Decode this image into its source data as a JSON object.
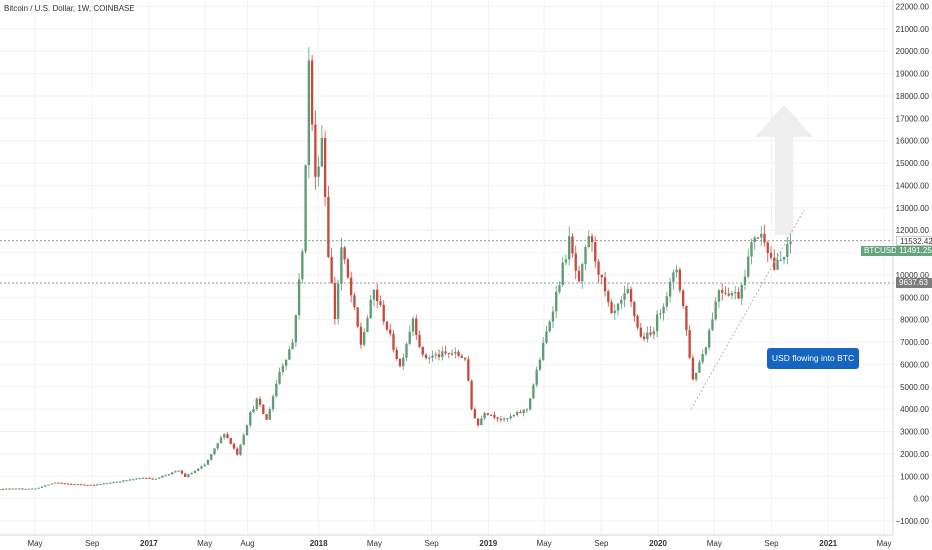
{
  "title": "Bitcoin / U.S. Dollar, 1W, COINBASE",
  "annotation": "USD flowing into BTC",
  "symbol_tag": "BTCUSD",
  "price_tags": {
    "high": "11532.42",
    "last": "11491.25",
    "low": "9637.63"
  },
  "colors": {
    "up": "#5e9b76",
    "down": "#c94a3d",
    "grid": "#f2f2f2",
    "arrow": "#eeeeee",
    "callout": "#1565c0",
    "trendline": "#b5b5b5"
  },
  "chart_data": {
    "type": "candlestick",
    "title": "Bitcoin / U.S. Dollar, 1W, COINBASE",
    "xlabel": "",
    "ylabel": "",
    "ylim": [
      -1000,
      22000
    ],
    "y_ticks": [
      "22000.00",
      "21000.00",
      "20000.00",
      "19000.00",
      "18000.00",
      "17000.00",
      "16000.00",
      "15000.00",
      "14000.00",
      "13000.00",
      "12000.00",
      "11000.00",
      "10000.00",
      "9000.00",
      "8000.00",
      "7000.00",
      "6000.00",
      "5000.00",
      "4000.00",
      "3000.00",
      "2000.00",
      "1000.00",
      "0.00",
      "−1000.00"
    ],
    "x_ticks": [
      {
        "label": "May",
        "date": "2016-05-01",
        "bold": false
      },
      {
        "label": "Sep",
        "date": "2016-09-01",
        "bold": false
      },
      {
        "label": "2017",
        "date": "2017-01-01",
        "bold": true
      },
      {
        "label": "May",
        "date": "2017-05-01",
        "bold": false
      },
      {
        "label": "Aug",
        "date": "2017-08-01",
        "bold": false
      },
      {
        "label": "2018",
        "date": "2018-01-01",
        "bold": true
      },
      {
        "label": "May",
        "date": "2018-05-01",
        "bold": false
      },
      {
        "label": "Sep",
        "date": "2018-09-01",
        "bold": false
      },
      {
        "label": "2019",
        "date": "2019-01-01",
        "bold": true
      },
      {
        "label": "May",
        "date": "2019-05-01",
        "bold": false
      },
      {
        "label": "Sep",
        "date": "2019-09-01",
        "bold": false
      },
      {
        "label": "2020",
        "date": "2020-01-01",
        "bold": true
      },
      {
        "label": "May",
        "date": "2020-05-01",
        "bold": false
      },
      {
        "label": "Sep",
        "date": "2020-09-01",
        "bold": false
      },
      {
        "label": "2021",
        "date": "2021-01-01",
        "bold": true
      },
      {
        "label": "May",
        "date": "2021-05-01",
        "bold": false
      }
    ],
    "price_lines": [
      11532.42,
      9637.63
    ],
    "trendline": [
      {
        "date": "2020-03-12",
        "value": 4000
      },
      {
        "date": "2020-11-10",
        "value": 12900
      }
    ],
    "arrow": {
      "date": "2020-09-28",
      "base": 11800,
      "top": 17600
    },
    "series_keypoints": [
      {
        "date": "2016-01-04",
        "value": 430
      },
      {
        "date": "2016-05-02",
        "value": 450
      },
      {
        "date": "2016-06-13",
        "value": 720
      },
      {
        "date": "2016-07-04",
        "value": 660
      },
      {
        "date": "2016-09-05",
        "value": 610
      },
      {
        "date": "2016-12-26",
        "value": 950
      },
      {
        "date": "2017-01-09",
        "value": 860
      },
      {
        "date": "2017-03-06",
        "value": 1250
      },
      {
        "date": "2017-03-20",
        "value": 980
      },
      {
        "date": "2017-05-01",
        "value": 1500
      },
      {
        "date": "2017-05-22",
        "value": 2200
      },
      {
        "date": "2017-06-12",
        "value": 2950
      },
      {
        "date": "2017-07-10",
        "value": 2000
      },
      {
        "date": "2017-08-07",
        "value": 3800
      },
      {
        "date": "2017-08-21",
        "value": 4400
      },
      {
        "date": "2017-09-11",
        "value": 3500
      },
      {
        "date": "2017-10-09",
        "value": 5700
      },
      {
        "date": "2017-11-06",
        "value": 7000
      },
      {
        "date": "2017-11-27",
        "value": 11000
      },
      {
        "date": "2017-12-11",
        "value": 19400
      },
      {
        "date": "2017-12-25",
        "value": 14200
      },
      {
        "date": "2018-01-08",
        "value": 16200
      },
      {
        "date": "2018-01-22",
        "value": 11000
      },
      {
        "date": "2018-02-05",
        "value": 8100
      },
      {
        "date": "2018-02-19",
        "value": 11200
      },
      {
        "date": "2018-03-05",
        "value": 9800
      },
      {
        "date": "2018-04-02",
        "value": 6900
      },
      {
        "date": "2018-04-30",
        "value": 9300
      },
      {
        "date": "2018-05-14",
        "value": 8500
      },
      {
        "date": "2018-06-25",
        "value": 5900
      },
      {
        "date": "2018-07-23",
        "value": 8100
      },
      {
        "date": "2018-08-13",
        "value": 6300
      },
      {
        "date": "2018-10-15",
        "value": 6500
      },
      {
        "date": "2018-11-12",
        "value": 6300
      },
      {
        "date": "2018-11-26",
        "value": 4000
      },
      {
        "date": "2018-12-10",
        "value": 3300
      },
      {
        "date": "2018-12-24",
        "value": 3900
      },
      {
        "date": "2019-02-04",
        "value": 3500
      },
      {
        "date": "2019-03-25",
        "value": 4000
      },
      {
        "date": "2019-04-08",
        "value": 5100
      },
      {
        "date": "2019-05-13",
        "value": 8000
      },
      {
        "date": "2019-06-24",
        "value": 11500
      },
      {
        "date": "2019-07-15",
        "value": 9500
      },
      {
        "date": "2019-08-05",
        "value": 11800
      },
      {
        "date": "2019-09-23",
        "value": 8100
      },
      {
        "date": "2019-10-28",
        "value": 9200
      },
      {
        "date": "2019-11-25",
        "value": 7200
      },
      {
        "date": "2019-12-16",
        "value": 7300
      },
      {
        "date": "2020-01-13",
        "value": 8800
      },
      {
        "date": "2020-02-10",
        "value": 10300
      },
      {
        "date": "2020-02-24",
        "value": 8600
      },
      {
        "date": "2020-03-16",
        "value": 5300
      },
      {
        "date": "2020-04-13",
        "value": 6900
      },
      {
        "date": "2020-05-11",
        "value": 9400
      },
      {
        "date": "2020-06-22",
        "value": 9100
      },
      {
        "date": "2020-07-27",
        "value": 11800
      },
      {
        "date": "2020-08-17",
        "value": 11700
      },
      {
        "date": "2020-09-07",
        "value": 10300
      },
      {
        "date": "2020-09-28",
        "value": 10800
      },
      {
        "date": "2020-10-12",
        "value": 11491.25
      }
    ]
  }
}
